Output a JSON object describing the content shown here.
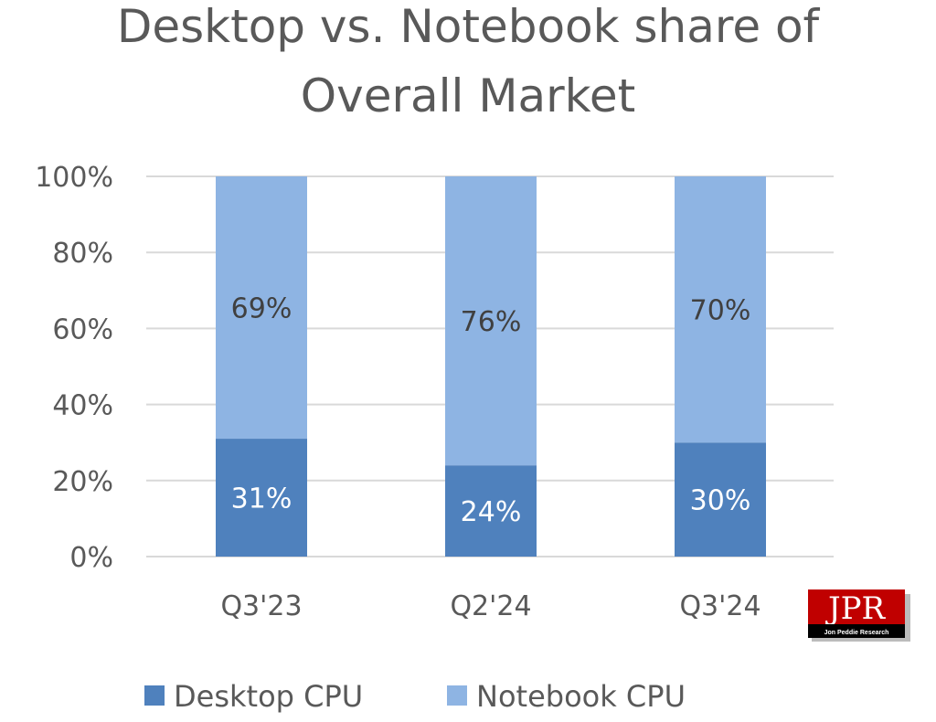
{
  "chart_data": {
    "type": "bar",
    "stacked": true,
    "title": [
      "Desktop vs. Notebook share of",
      "Overall Market"
    ],
    "categories": [
      "Q3'23",
      "Q2'24",
      "Q3'24"
    ],
    "series": [
      {
        "name": "Desktop CPU",
        "values": [
          31,
          24,
          30
        ],
        "labels": [
          "31%",
          "24%",
          "30%"
        ],
        "color": "#4f81bd"
      },
      {
        "name": "Notebook CPU",
        "values": [
          69,
          76,
          70
        ],
        "labels": [
          "69%",
          "76%",
          "70%"
        ],
        "color": "#8eb4e3"
      }
    ],
    "ylim": [
      0,
      100
    ],
    "yticks": [
      "0%",
      "20%",
      "40%",
      "60%",
      "80%",
      "100%"
    ],
    "grid": true,
    "legend_position": "bottom",
    "grid_color": "#d9d9d9"
  },
  "logo": {
    "text": "JPR",
    "subtext": "Jon Peddie Research",
    "color": "#c00000"
  }
}
